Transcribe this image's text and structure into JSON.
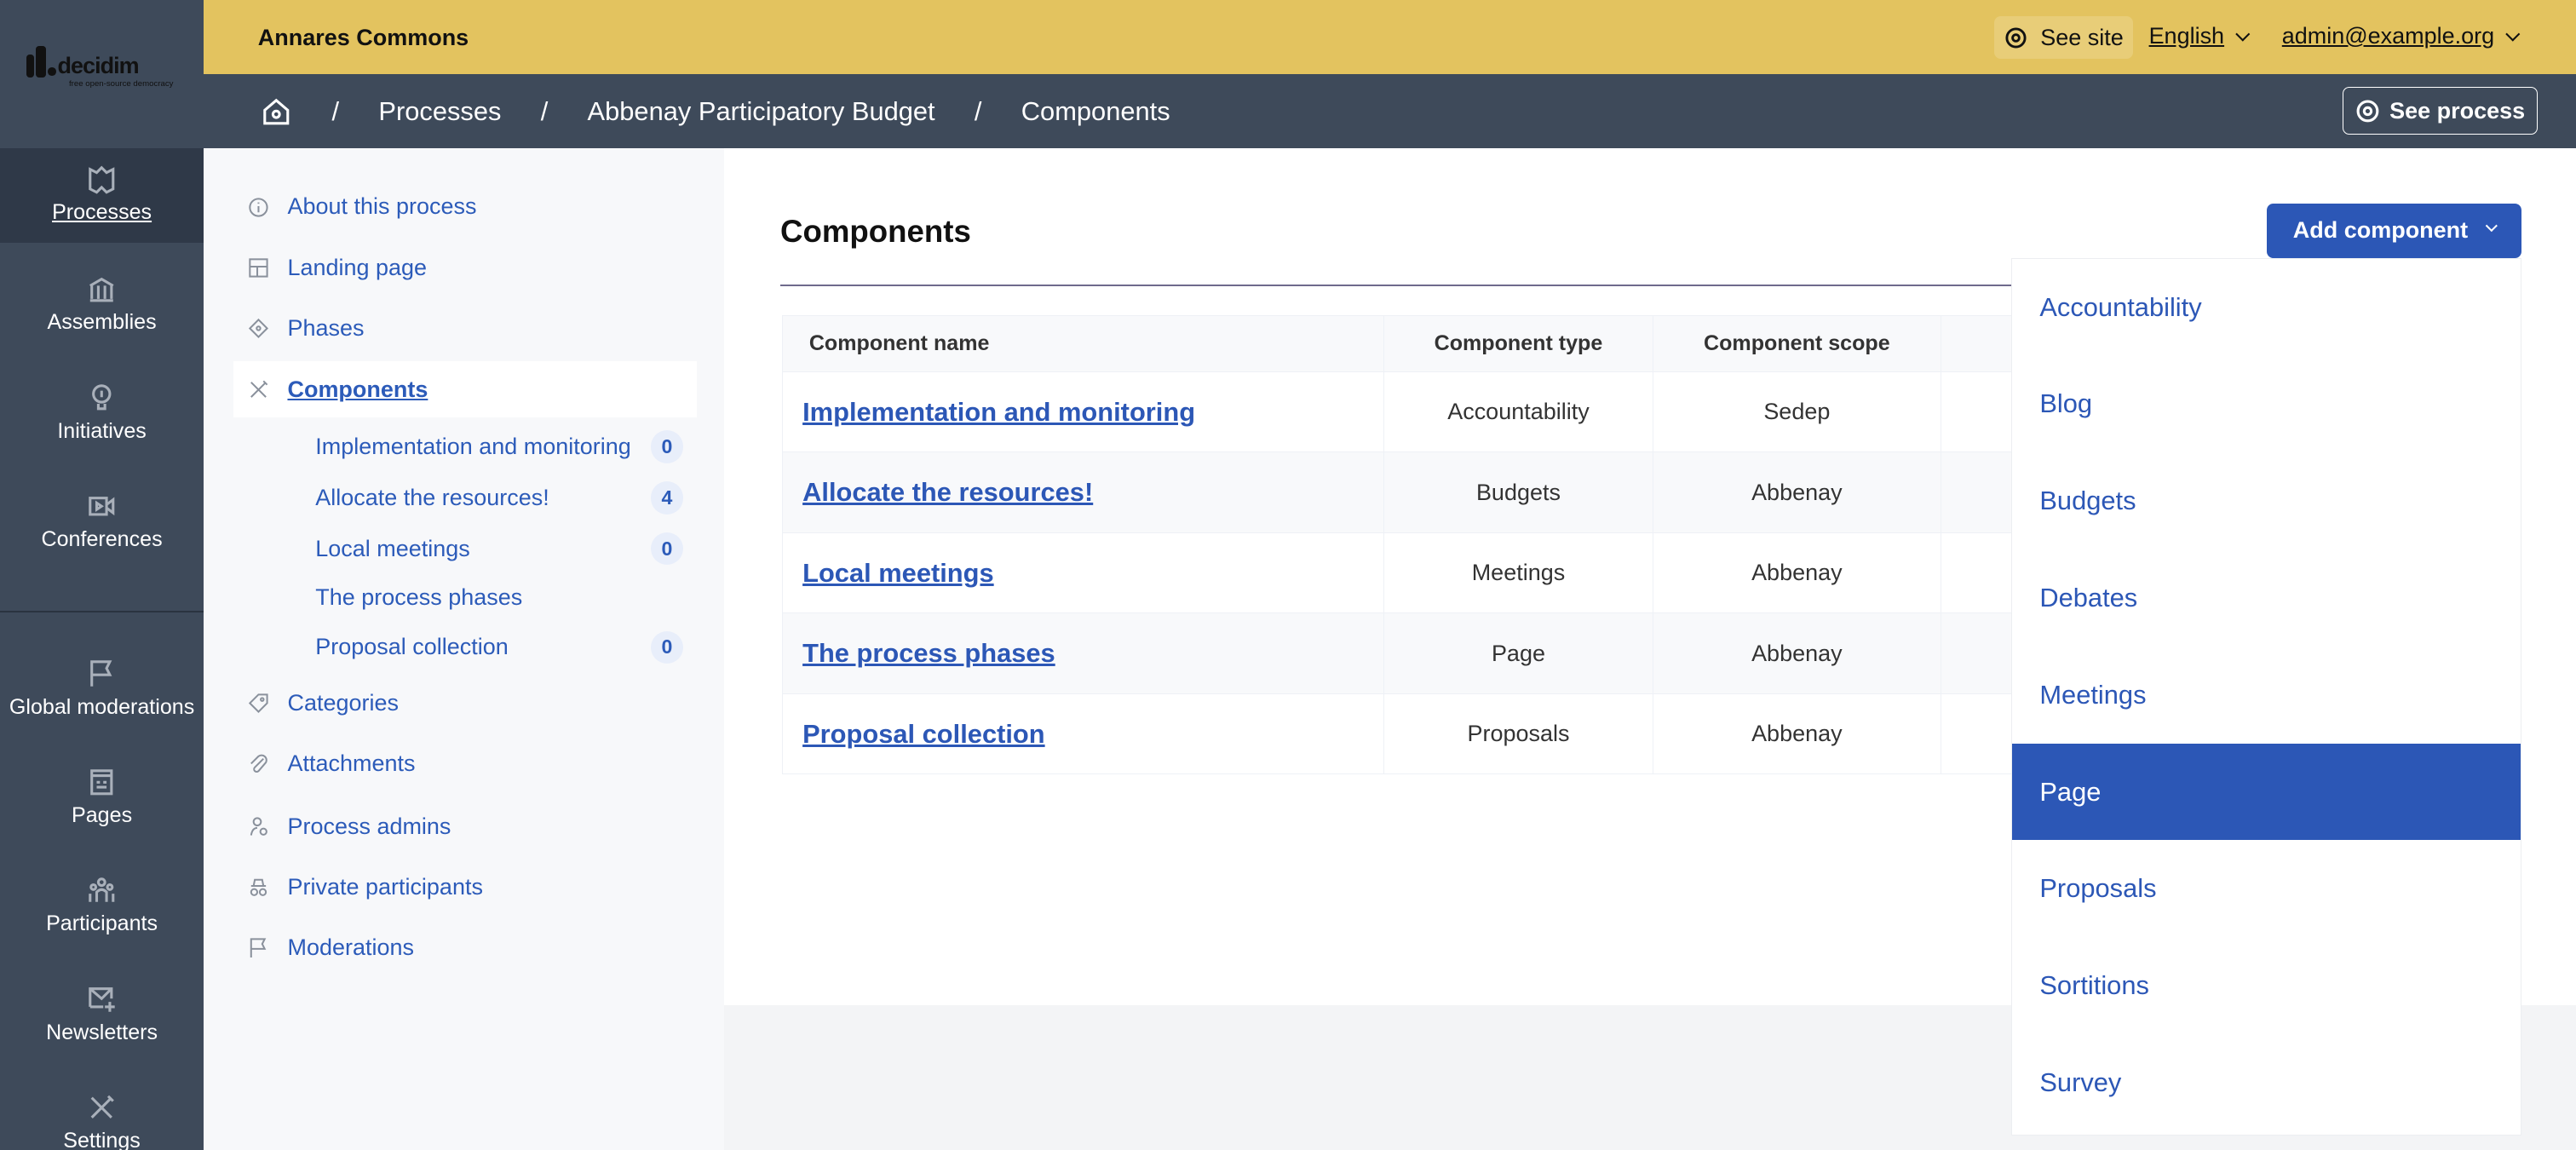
{
  "logo": {
    "text": "decidim",
    "tagline": "free open-source democracy"
  },
  "nav": {
    "items": [
      {
        "label": "Processes",
        "icon": "map-icon",
        "active": true
      },
      {
        "label": "Assemblies",
        "icon": "bank-icon"
      },
      {
        "label": "Initiatives",
        "icon": "lightbulb-icon"
      },
      {
        "label": "Conferences",
        "icon": "video-icon"
      },
      {
        "label": "Global moderations",
        "icon": "flag-icon"
      },
      {
        "label": "Pages",
        "icon": "page-icon"
      },
      {
        "label": "Participants",
        "icon": "people-icon"
      },
      {
        "label": "Newsletters",
        "icon": "mail-add-icon"
      },
      {
        "label": "Settings",
        "icon": "tools-icon"
      }
    ]
  },
  "topbar": {
    "org": "Annares Commons",
    "see_site": "See site",
    "language": "English",
    "user": "admin@example.org"
  },
  "breadcrumb": {
    "items": [
      "Processes",
      "Abbenay Participatory Budget",
      "Components"
    ],
    "separator": "/",
    "see_process": "See process"
  },
  "sidebar": {
    "items": [
      {
        "label": "About this process",
        "icon": "info-icon"
      },
      {
        "label": "Landing page",
        "icon": "layout-icon"
      },
      {
        "label": "Phases",
        "icon": "diamond-icon"
      },
      {
        "label": "Components",
        "icon": "tools-icon",
        "active": true
      },
      {
        "label": "Categories",
        "icon": "tag-icon"
      },
      {
        "label": "Attachments",
        "icon": "paperclip-icon"
      },
      {
        "label": "Process admins",
        "icon": "user-settings-icon"
      },
      {
        "label": "Private participants",
        "icon": "incognito-icon"
      },
      {
        "label": "Moderations",
        "icon": "flag-icon"
      }
    ],
    "components": [
      {
        "label": "Implementation and monitoring",
        "count": "0"
      },
      {
        "label": "Allocate the resources!",
        "count": "4"
      },
      {
        "label": "Local meetings",
        "count": "0"
      },
      {
        "label": "The process phases",
        "count": null
      },
      {
        "label": "Proposal collection",
        "count": "0"
      }
    ]
  },
  "main": {
    "title": "Components",
    "add_button": "Add component",
    "table": {
      "headers": [
        "Component name",
        "Component type",
        "Component scope"
      ],
      "rows": [
        [
          "Implementation and monitoring",
          "Accountability",
          "Sedep"
        ],
        [
          "Allocate the resources!",
          "Budgets",
          "Abbenay"
        ],
        [
          "Local meetings",
          "Meetings",
          "Abbenay"
        ],
        [
          "The process phases",
          "Page",
          "Abbenay"
        ],
        [
          "Proposal collection",
          "Proposals",
          "Abbenay"
        ]
      ]
    }
  },
  "dropdown": {
    "items": [
      "Accountability",
      "Blog",
      "Budgets",
      "Debates",
      "Meetings",
      "Page",
      "Proposals",
      "Sortitions",
      "Survey"
    ],
    "highlighted": "Page"
  },
  "colors": {
    "topbar": "#e3c35f",
    "nav": "#3e4a5a",
    "accent": "#2c57b6"
  }
}
